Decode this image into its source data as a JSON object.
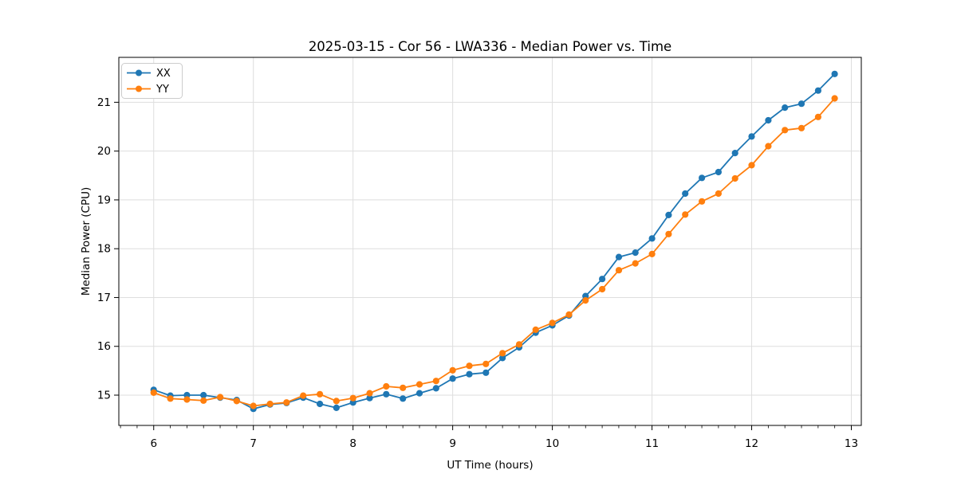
{
  "figure": {
    "title": "2025-03-15 - Cor 56 - LWA336 - Median Power vs. Time",
    "xlabel": "UT Time (hours)",
    "ylabel": "Median Power (CPU)"
  },
  "legend": {
    "position": "upper-left",
    "items": [
      {
        "label": "XX",
        "color": "#1f77b4"
      },
      {
        "label": "YY",
        "color": "#ff7f0e"
      }
    ]
  },
  "chart_data": {
    "type": "line",
    "title": "2025-03-15 - Cor 56 - LWA336 - Median Power vs. Time",
    "xlabel": "UT Time (hours)",
    "ylabel": "Median Power (CPU)",
    "grid": true,
    "legend_position": "upper-left",
    "marker": "o",
    "xlim": [
      5.65,
      13.1
    ],
    "ylim": [
      14.38,
      21.92
    ],
    "xticks": [
      6,
      7,
      8,
      9,
      10,
      11,
      12,
      13
    ],
    "yticks": [
      15,
      16,
      17,
      18,
      19,
      20,
      21
    ],
    "x_minor_step": 0.1666667,
    "x": [
      6.0,
      6.167,
      6.333,
      6.5,
      6.667,
      6.833,
      7.0,
      7.167,
      7.333,
      7.5,
      7.667,
      7.833,
      8.0,
      8.167,
      8.333,
      8.5,
      8.667,
      8.833,
      9.0,
      9.167,
      9.333,
      9.5,
      9.667,
      9.833,
      10.0,
      10.167,
      10.333,
      10.5,
      10.667,
      10.833,
      11.0,
      11.167,
      11.333,
      11.5,
      11.667,
      11.833,
      12.0,
      12.167,
      12.333,
      12.5,
      12.667,
      12.833
    ],
    "series": [
      {
        "name": "XX",
        "color": "#1f77b4",
        "values": [
          15.11,
          14.99,
          15.0,
          15.0,
          14.95,
          14.9,
          14.72,
          14.81,
          14.84,
          14.95,
          14.82,
          14.74,
          14.85,
          14.94,
          15.02,
          14.93,
          15.04,
          15.14,
          15.34,
          15.43,
          15.46,
          15.76,
          15.98,
          16.28,
          16.43,
          16.63,
          17.03,
          17.38,
          17.83,
          17.92,
          18.21,
          18.69,
          19.13,
          19.45,
          19.57,
          19.96,
          20.3,
          20.63,
          20.89,
          20.97,
          21.24,
          21.58
        ]
      },
      {
        "name": "YY",
        "color": "#ff7f0e",
        "values": [
          15.05,
          14.93,
          14.91,
          14.89,
          14.96,
          14.88,
          14.78,
          14.82,
          14.85,
          14.99,
          15.02,
          14.88,
          14.94,
          15.04,
          15.18,
          15.15,
          15.22,
          15.29,
          15.51,
          15.6,
          15.64,
          15.86,
          16.04,
          16.34,
          16.48,
          16.65,
          16.94,
          17.17,
          17.56,
          17.7,
          17.89,
          18.3,
          18.7,
          18.97,
          19.13,
          19.44,
          19.71,
          20.1,
          20.43,
          20.47,
          20.7,
          21.08
        ]
      }
    ]
  },
  "style": {
    "grid_color": "#dedede",
    "spine_color": "#000000",
    "legend_border_color": "#cccccc",
    "background": "#ffffff"
  }
}
